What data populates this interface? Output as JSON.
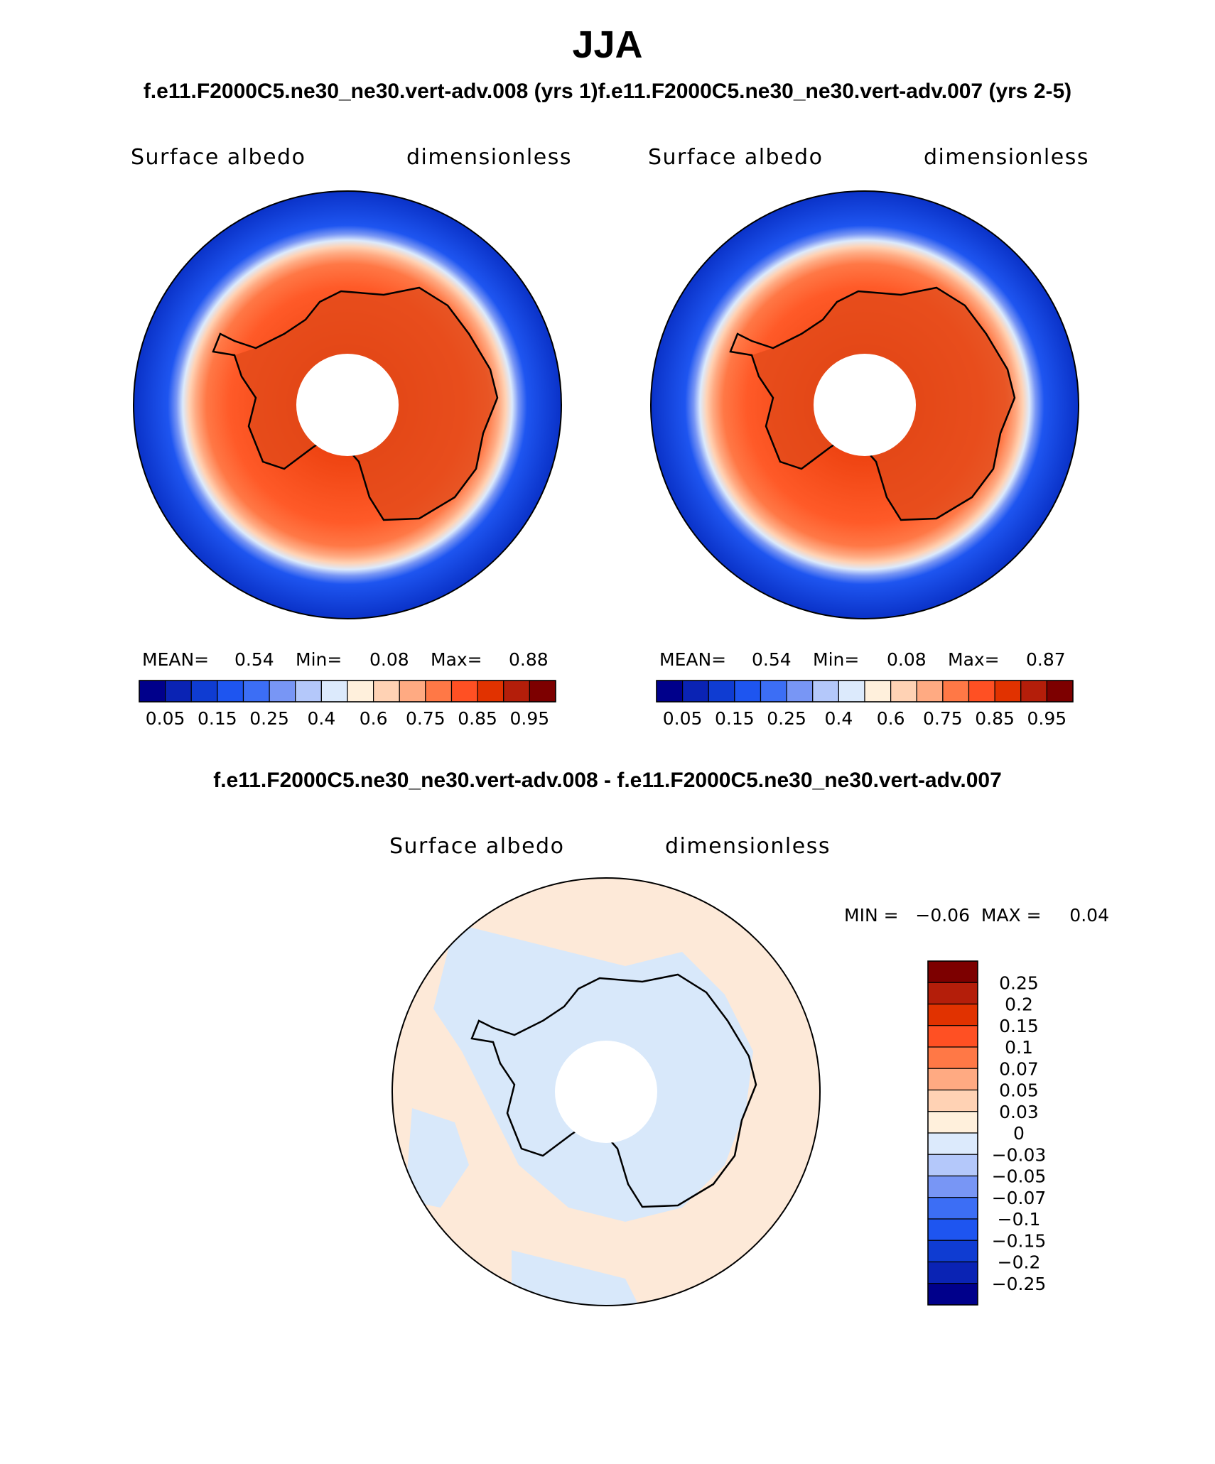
{
  "season": "JJA",
  "header_line": "f.e11.F2000C5.ne30_ne30.vert-adv.008 (yrs 1)f.e11.F2000C5.ne30_ne30.vert-adv.007 (yrs 2-5)",
  "diff_title": "f.e11.F2000C5.ne30_ne30.vert-adv.008 - f.e11.F2000C5.ne30_ne30.vert-adv.007",
  "panels": [
    {
      "variable": "Surface albedo",
      "units": "dimensionless",
      "mean_label": "MEAN=",
      "mean": "0.54",
      "min_label": "Min=",
      "min": "0.08",
      "max_label": "Max=",
      "max": "0.88"
    },
    {
      "variable": "Surface albedo",
      "units": "dimensionless",
      "mean_label": "MEAN=",
      "mean": "0.54",
      "min_label": "Min=",
      "min": "0.08",
      "max_label": "Max=",
      "max": "0.87"
    }
  ],
  "diff_panel": {
    "variable": "Surface albedo",
    "units": "dimensionless",
    "minmax": "MIN =   −0.06  MAX =     0.04"
  },
  "colors": {
    "main_scale": [
      "#00008b",
      "#0a23b4",
      "#0f3cd2",
      "#1e55f0",
      "#3c6ef5",
      "#7896f5",
      "#b4c8fa",
      "#dceafc",
      "#fff0dc",
      "#ffd2b4",
      "#ffaa82",
      "#ff7846",
      "#ff5023",
      "#e13200",
      "#b41e0a",
      "#7d0000"
    ],
    "diff_scale": [
      "#00008b",
      "#0a23b4",
      "#0f3cd2",
      "#1e55f0",
      "#3c6ef5",
      "#7896f5",
      "#b4c8fa",
      "#dceafc",
      "#fff0dc",
      "#ffd2b4",
      "#ffaa82",
      "#ff7846",
      "#ff5023",
      "#e13200",
      "#b41e0a",
      "#7d0000"
    ],
    "land": "#e04a1a",
    "ice": "#ff5a28",
    "ocean": "#0a32c8",
    "diff_pos": "#fde9d8",
    "diff_neg": "#d8e8fa"
  },
  "chart_data": [
    {
      "type": "heatmap",
      "title": "Surface albedo",
      "units": "dimensionless",
      "projection": "south-polar-stereographic",
      "stats": {
        "mean": 0.54,
        "min": 0.08,
        "max": 0.88
      },
      "colorbar_levels": [
        0.05,
        0.1,
        0.15,
        0.2,
        0.25,
        0.3,
        0.4,
        0.5,
        0.6,
        0.7,
        0.75,
        0.8,
        0.85,
        0.9,
        0.95
      ],
      "colorbar_tick_labels": [
        "0.05",
        "0.15",
        "0.25",
        "0.4",
        "0.6",
        "0.75",
        "0.85",
        "0.95"
      ]
    },
    {
      "type": "heatmap",
      "title": "Surface albedo",
      "units": "dimensionless",
      "projection": "south-polar-stereographic",
      "stats": {
        "mean": 0.54,
        "min": 0.08,
        "max": 0.87
      },
      "colorbar_levels": [
        0.05,
        0.1,
        0.15,
        0.2,
        0.25,
        0.3,
        0.4,
        0.5,
        0.6,
        0.7,
        0.75,
        0.8,
        0.85,
        0.9,
        0.95
      ],
      "colorbar_tick_labels": [
        "0.05",
        "0.15",
        "0.25",
        "0.4",
        "0.6",
        "0.75",
        "0.85",
        "0.95"
      ]
    },
    {
      "type": "heatmap",
      "title": "Surface albedo",
      "units": "dimensionless",
      "projection": "south-polar-stereographic",
      "stats": {
        "min": -0.06,
        "max": 0.04
      },
      "colorbar_tick_labels": [
        "0.25",
        "0.2",
        "0.15",
        "0.1",
        "0.07",
        "0.05",
        "0.03",
        "0",
        "−0.03",
        "−0.05",
        "−0.07",
        "−0.1",
        "−0.15",
        "−0.2",
        "−0.25"
      ]
    }
  ]
}
